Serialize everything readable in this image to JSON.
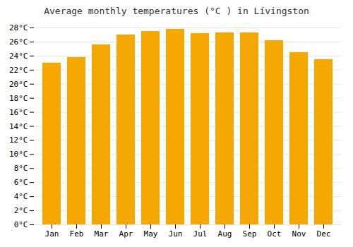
{
  "chart_data": {
    "type": "bar",
    "title": "Average monthly temperatures (°C ) in Lívingston",
    "categories": [
      "Jan",
      "Feb",
      "Mar",
      "Apr",
      "May",
      "Jun",
      "Jul",
      "Aug",
      "Sep",
      "Oct",
      "Nov",
      "Dec"
    ],
    "values": [
      23.0,
      23.8,
      25.6,
      27.0,
      27.5,
      27.8,
      27.2,
      27.3,
      27.3,
      26.2,
      24.5,
      23.5
    ],
    "color": "#F5A800",
    "ylim": [
      0,
      28
    ],
    "yticks": [
      {
        "value": 0,
        "label": "0°C"
      },
      {
        "value": 2,
        "label": "2°C"
      },
      {
        "value": 4,
        "label": "4°C"
      },
      {
        "value": 6,
        "label": "6°C"
      },
      {
        "value": 8,
        "label": "8°C"
      },
      {
        "value": 10,
        "label": "10°C"
      },
      {
        "value": 12,
        "label": "12°C"
      },
      {
        "value": 14,
        "label": "14°C"
      },
      {
        "value": 16,
        "label": "16°C"
      },
      {
        "value": 18,
        "label": "18°C"
      },
      {
        "value": 20,
        "label": "20°C"
      },
      {
        "value": 22,
        "label": "22°C"
      },
      {
        "value": 24,
        "label": "24°C"
      },
      {
        "value": 26,
        "label": "26°C"
      },
      {
        "value": 28,
        "label": "28°C"
      }
    ],
    "grid": true
  }
}
